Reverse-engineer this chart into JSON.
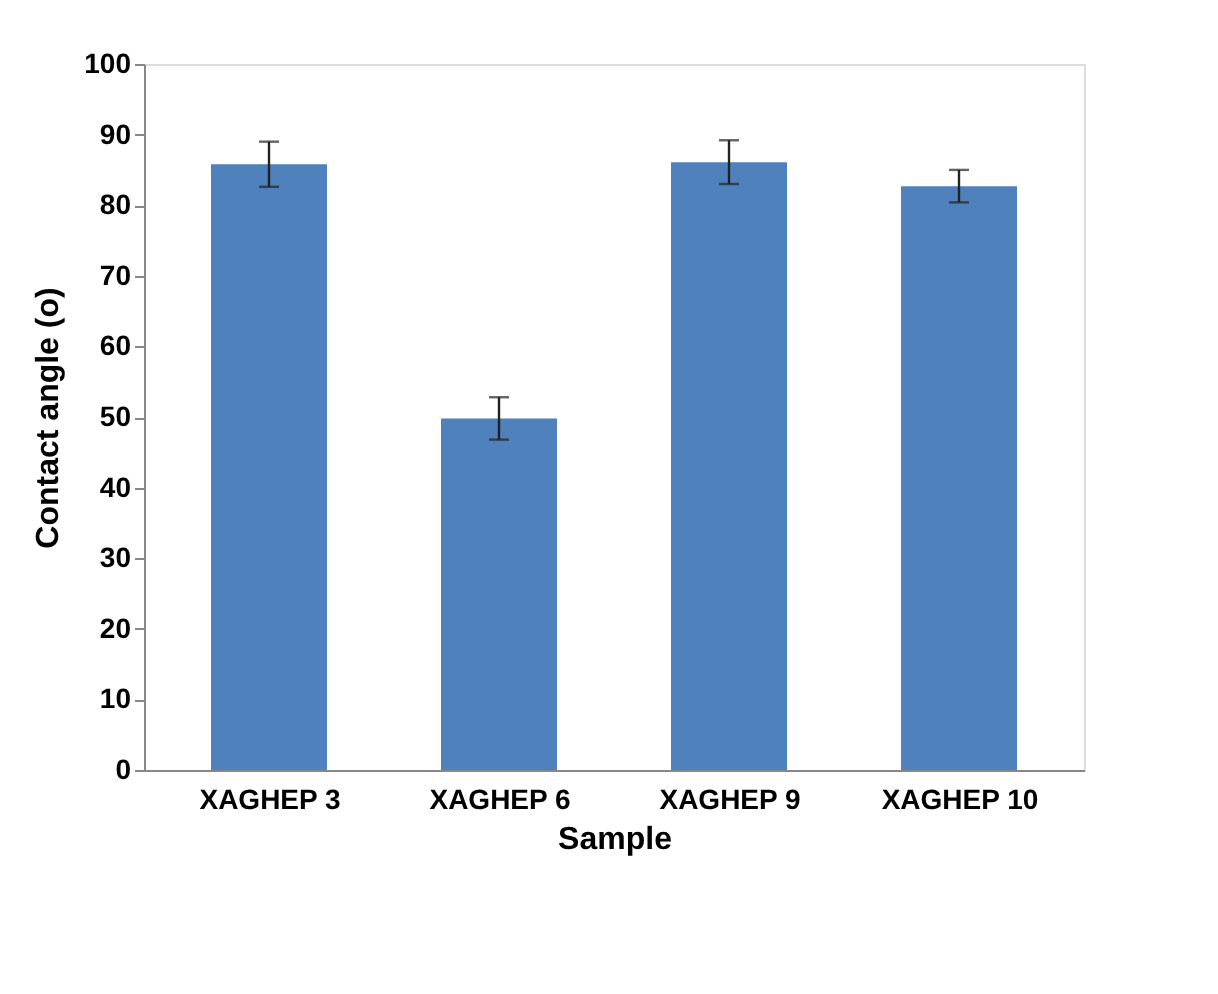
{
  "chart_data": {
    "type": "bar",
    "xlabel": "Sample",
    "ylabel": "Contact angle (o)",
    "categories": [
      "XAGHEP 3",
      "XAGHEP 6",
      "XAGHEP 9",
      "XAGHEP 10"
    ],
    "values": [
      85.8,
      49.8,
      86.1,
      82.7
    ],
    "errors": [
      3.2,
      3,
      3.1,
      2.3
    ],
    "color": "#4f81bd",
    "ylim": [
      0,
      100
    ],
    "yticks": [
      0,
      10,
      20,
      30,
      40,
      50,
      60,
      70,
      80,
      90,
      100
    ],
    "grid": false
  }
}
